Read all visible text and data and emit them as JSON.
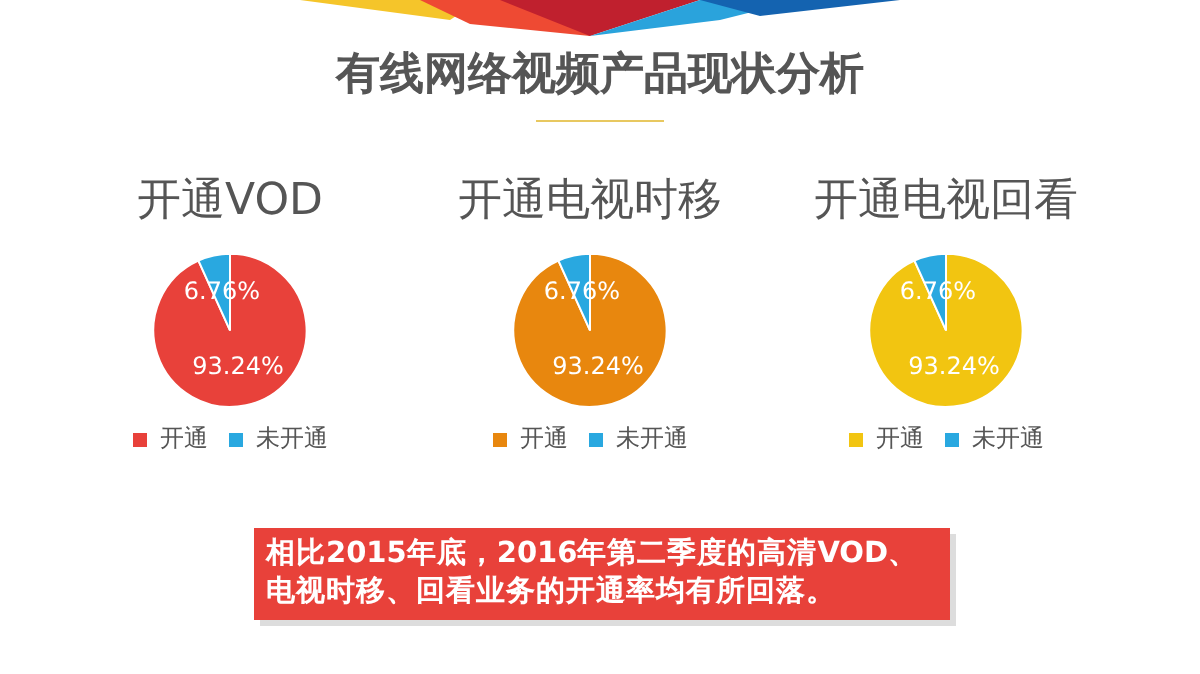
{
  "chart_data": [
    {
      "type": "other",
      "title": "有线网络视频产品现状分析"
    },
    {
      "type": "pie",
      "title": "开通VOD",
      "categories": [
        "开通",
        "未开通"
      ],
      "values": [
        93.24,
        6.76
      ],
      "colors": [
        "#e8413a",
        "#29a8e0"
      ],
      "value_labels": [
        "93.24%",
        "6.76%"
      ],
      "legend": "bottom"
    },
    {
      "type": "pie",
      "title": "开通电视时移",
      "categories": [
        "开通",
        "未开通"
      ],
      "values": [
        93.24,
        6.76
      ],
      "colors": [
        "#e8870e",
        "#29a8e0"
      ],
      "value_labels": [
        "93.24%",
        "6.76%"
      ],
      "legend": "bottom"
    },
    {
      "type": "pie",
      "title": "开通电视回看",
      "categories": [
        "开通",
        "未开通"
      ],
      "values": [
        93.24,
        6.76
      ],
      "colors": [
        "#f2c511",
        "#29a8e0"
      ],
      "value_labels": [
        "93.24%",
        "6.76%"
      ],
      "legend": "bottom"
    },
    {
      "type": "other",
      "annotations": [
        "相比2015年底，2016年第二季度的高清VOD、电视时移、回看业务的开通率均有所回落。"
      ]
    }
  ]
}
